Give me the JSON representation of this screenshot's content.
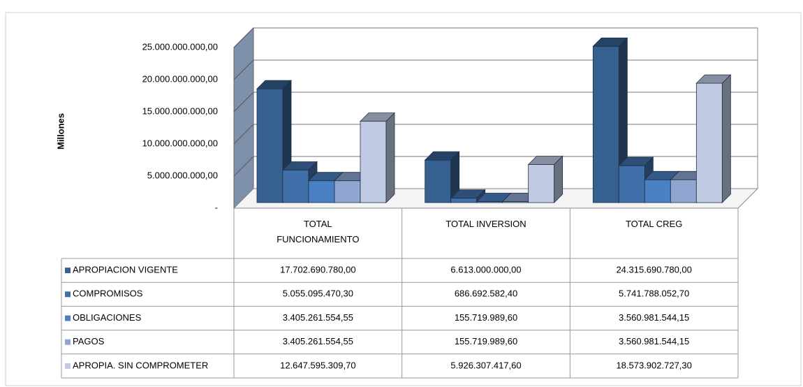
{
  "chart_data": {
    "type": "bar3d",
    "y_axis_label": "Millones",
    "categories": [
      "TOTAL FUNCIONAMIENTO",
      "TOTAL INVERSION",
      "TOTAL CREG"
    ],
    "ylim": [
      0,
      25000000000
    ],
    "yticks": [
      {
        "value": 0,
        "label": "-"
      },
      {
        "value": 5000000000,
        "label": "5.000.000.000,00"
      },
      {
        "value": 10000000000,
        "label": "10.000.000.000,00"
      },
      {
        "value": 15000000000,
        "label": "15.000.000.000,00"
      },
      {
        "value": 20000000000,
        "label": "20.000.000.000,00"
      },
      {
        "value": 25000000000,
        "label": "25.000.000.000,00"
      }
    ],
    "grid": true,
    "series": [
      {
        "name": "APROPIACION VIGENTE",
        "color": "#35608f",
        "values": [
          17702690780.0,
          6613000000.0,
          24315690780.0
        ],
        "value_labels": [
          "17.702.690.780,00",
          "6.613.000.000,00",
          "24.315.690.780,00"
        ]
      },
      {
        "name": "COMPROMISOS",
        "color": "#3f70aa",
        "values": [
          5055095470.3,
          686692582.4,
          5741788052.7
        ],
        "value_labels": [
          "5.055.095.470,30",
          "686.692.582,40",
          "5.741.788.052,70"
        ]
      },
      {
        "name": "OBLIGACIONES",
        "color": "#4a80c4",
        "values": [
          3405261554.55,
          155719989.6,
          3560981544.15
        ],
        "value_labels": [
          "3.405.261.554,55",
          "155.719.989,60",
          "3.560.981.544,15"
        ]
      },
      {
        "name": "PAGOS",
        "color": "#8ea6d0",
        "values": [
          3405261554.55,
          155719989.6,
          3560981544.15
        ],
        "value_labels": [
          "3.405.261.554,55",
          "155.719.989,60",
          "3.560.981.544,15"
        ]
      },
      {
        "name": "APROPIA. SIN COMPROMETER",
        "color": "#c0cbe3",
        "values": [
          12647595309.7,
          5926307417.6,
          18573902727.3
        ],
        "value_labels": [
          "12.647.595.309,70",
          "5.926.307.417,60",
          "18.573.902.727,30"
        ]
      }
    ]
  }
}
